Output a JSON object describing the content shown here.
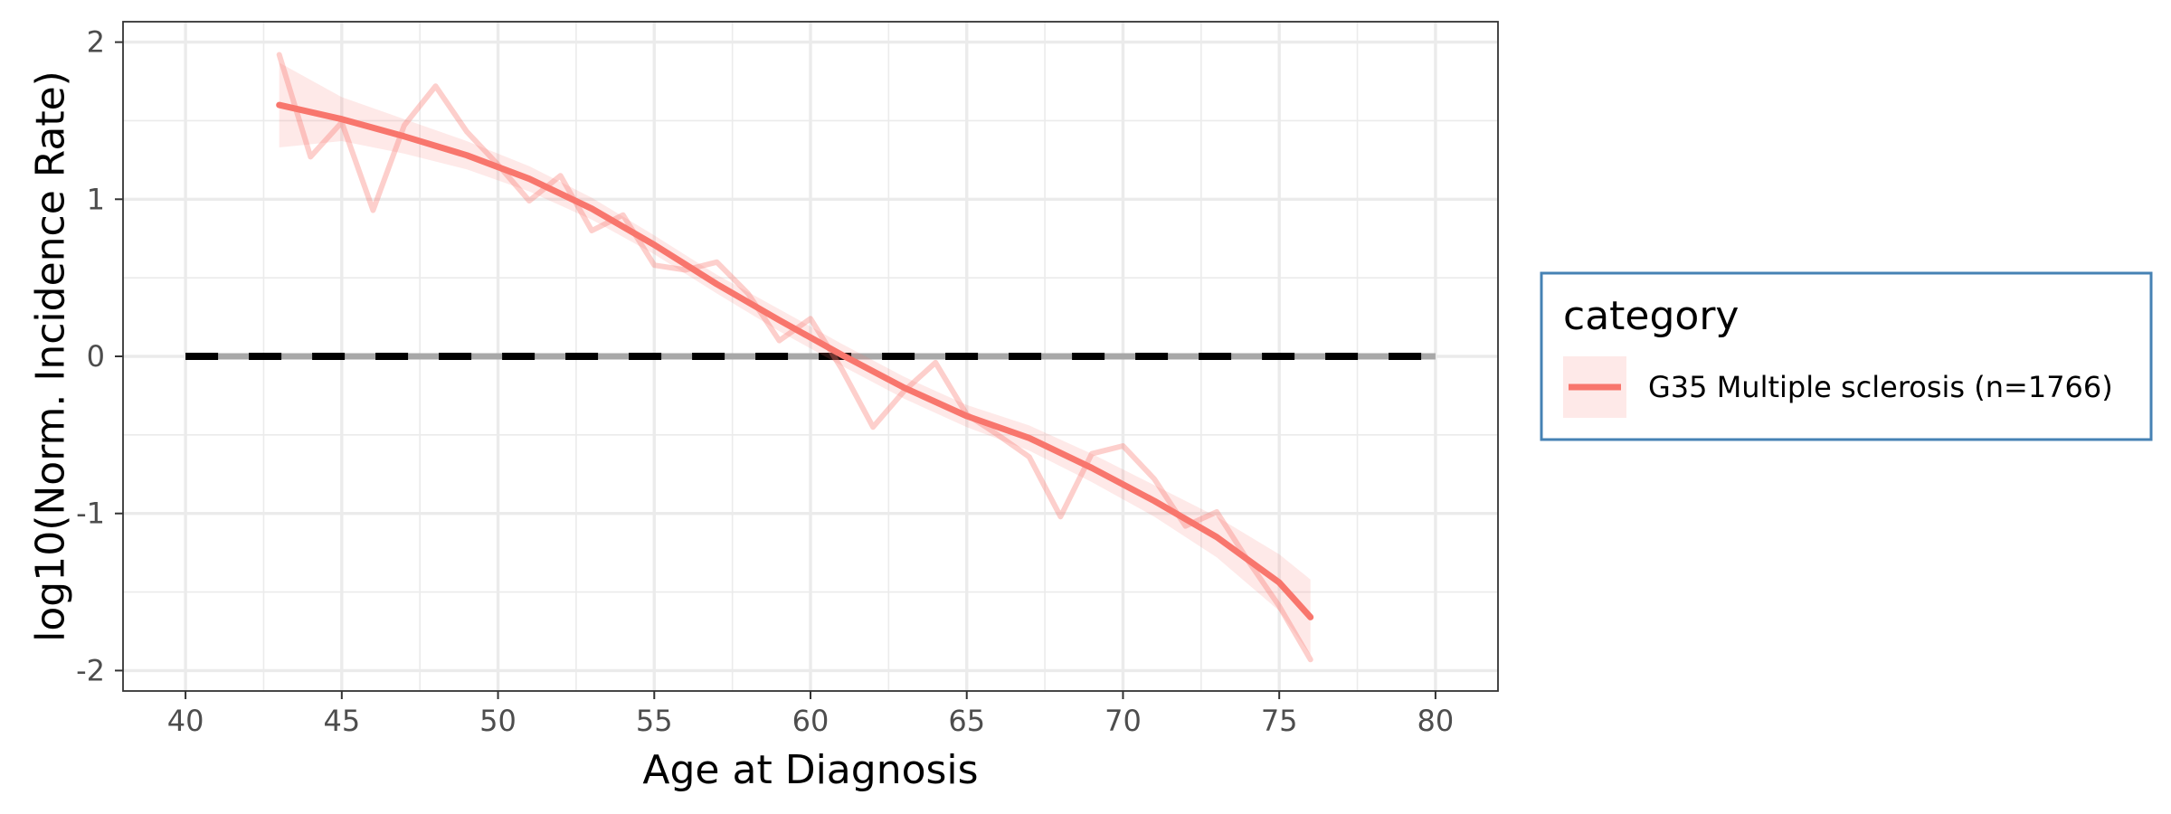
{
  "chart_data": {
    "type": "line",
    "xlabel": "Age at Diagnosis",
    "ylabel": "log10(Norm. Incidence Rate)",
    "xlim": [
      38,
      82
    ],
    "ylim": [
      -2.13,
      2.13
    ],
    "x_ticks": [
      40,
      45,
      50,
      55,
      60,
      65,
      70,
      75,
      80
    ],
    "x_tick_labels": [
      "40",
      "45",
      "50",
      "55",
      "60",
      "65",
      "70",
      "75",
      "80"
    ],
    "y_ticks": [
      -2,
      -1,
      0,
      1,
      2
    ],
    "y_tick_labels": [
      "-2",
      "-1",
      "0",
      "1",
      "2"
    ],
    "grid": true,
    "reference_line": {
      "y": 0,
      "x_range": [
        40,
        80
      ],
      "style": "dashed",
      "color": "#000000"
    },
    "legend": {
      "title": "category",
      "position": "right",
      "border_color": "#4682b4",
      "entries": [
        {
          "label": "G35 Multiple sclerosis (n=1766)",
          "color": "#f8766d"
        }
      ]
    },
    "series": [
      {
        "name": "G35 Multiple sclerosis (n=1766)",
        "color": "#f8766d",
        "raw": {
          "x": [
            43,
            44,
            45,
            46,
            47,
            48,
            49,
            50,
            51,
            52,
            53,
            54,
            55,
            56,
            57,
            58,
            59,
            60,
            61,
            62,
            63,
            64,
            65,
            66,
            67,
            68,
            69,
            70,
            71,
            72,
            73,
            74,
            75,
            76
          ],
          "y": [
            1.92,
            1.27,
            1.49,
            0.93,
            1.47,
            1.72,
            1.43,
            1.22,
            0.99,
            1.15,
            0.8,
            0.9,
            0.58,
            0.55,
            0.6,
            0.4,
            0.1,
            0.24,
            -0.08,
            -0.45,
            -0.22,
            -0.04,
            -0.37,
            -0.5,
            -0.64,
            -1.02,
            -0.62,
            -0.57,
            -0.78,
            -1.08,
            -0.99,
            -1.3,
            -1.59,
            -1.93
          ]
        },
        "smooth": {
          "x": [
            43,
            45,
            47,
            49,
            51,
            53,
            55,
            57,
            59,
            61,
            63,
            65,
            67,
            69,
            71,
            73,
            75,
            76
          ],
          "y": [
            1.6,
            1.51,
            1.4,
            1.28,
            1.13,
            0.94,
            0.71,
            0.46,
            0.23,
            0.01,
            -0.2,
            -0.38,
            -0.52,
            -0.71,
            -0.92,
            -1.15,
            -1.44,
            -1.66
          ]
        },
        "band": {
          "x": [
            43,
            45,
            47,
            49,
            51,
            53,
            55,
            57,
            59,
            61,
            63,
            65,
            67,
            69,
            71,
            73,
            75,
            76
          ],
          "lower": [
            1.33,
            1.37,
            1.29,
            1.19,
            1.05,
            0.87,
            0.65,
            0.4,
            0.16,
            -0.06,
            -0.27,
            -0.45,
            -0.6,
            -0.8,
            -1.02,
            -1.28,
            -1.62,
            -1.9
          ],
          "upper": [
            1.87,
            1.65,
            1.51,
            1.37,
            1.21,
            1.01,
            0.77,
            0.52,
            0.3,
            0.08,
            -0.13,
            -0.31,
            -0.44,
            -0.62,
            -0.82,
            -1.02,
            -1.26,
            -1.42
          ]
        }
      }
    ]
  }
}
